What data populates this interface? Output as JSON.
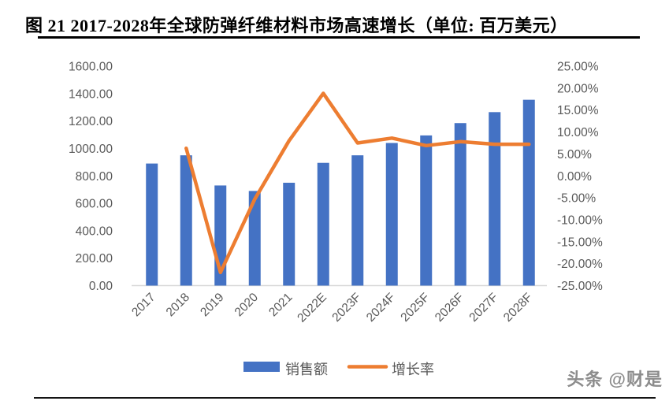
{
  "page": {
    "title": "图 21 2017-2028年全球防弹纤维材料市场高速增长（单位: 百万美元）",
    "watermark": "头条 @财是"
  },
  "colors": {
    "bar": "#4472C4",
    "line": "#ED7D31",
    "axis_text": "#595959",
    "axis_line": "#D9D9D9",
    "legend_text": "#595959"
  },
  "chart_data": {
    "type": "bar",
    "subtype": "bar-line-combo",
    "title": "2017-2028年全球防弹纤维材料市场高速增长",
    "unit": "百万美元",
    "categories": [
      "2017",
      "2018",
      "2019",
      "2020",
      "2021",
      "2022E",
      "2023F",
      "2024F",
      "2025F",
      "2026F",
      "2027F",
      "2028F"
    ],
    "series": [
      {
        "name": "销售额",
        "type": "bar",
        "axis": "left",
        "color": "#4472C4",
        "values": [
          890,
          950,
          730,
          690,
          750,
          895,
          950,
          1040,
          1095,
          1185,
          1265,
          1355
        ]
      },
      {
        "name": "增长率",
        "type": "line",
        "axis": "right",
        "color": "#ED7D31",
        "values": [
          null,
          6.3,
          -22.0,
          -5.3,
          8.0,
          18.8,
          7.5,
          8.6,
          6.9,
          7.8,
          7.2,
          7.2
        ]
      }
    ],
    "left_axis": {
      "min": 0,
      "max": 1600,
      "tick_step": 200,
      "labels": [
        "1600.00",
        "1400.00",
        "1200.00",
        "1000.00",
        "800.00",
        "600.00",
        "400.00",
        "200.00",
        "0.00"
      ]
    },
    "right_axis": {
      "min": -25,
      "max": 25,
      "tick_step": 5,
      "labels": [
        "25.00%",
        "20.00%",
        "15.00%",
        "10.00%",
        "5.00%",
        "0.00%",
        "-5.00%",
        "-10.00%",
        "-15.00%",
        "-20.00%",
        "-25.00%"
      ]
    },
    "gridlines": false,
    "legend_position": "bottom"
  }
}
